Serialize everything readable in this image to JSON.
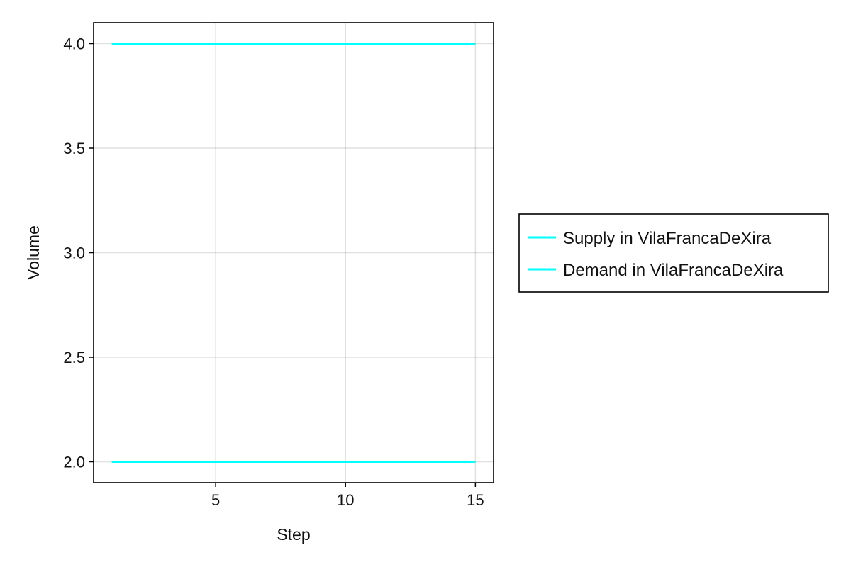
{
  "chart_data": {
    "type": "line",
    "xlabel": "Step",
    "ylabel": "Volume",
    "xlim": [
      0.3,
      15.7
    ],
    "ylim": [
      1.9,
      4.1
    ],
    "xticks": [
      5,
      10,
      15
    ],
    "xtick_labels": [
      "5",
      "10",
      "15"
    ],
    "yticks": [
      2.0,
      2.5,
      3.0,
      3.5,
      4.0
    ],
    "ytick_labels": [
      "2.0",
      "2.5",
      "3.0",
      "3.5",
      "4.0"
    ],
    "grid": true,
    "legend_position": "right",
    "series": [
      {
        "name": "Supply in VilaFrancaDeXira",
        "color": "#00ffff",
        "x": [
          1,
          2,
          3,
          4,
          5,
          6,
          7,
          8,
          9,
          10,
          11,
          12,
          13,
          14,
          15
        ],
        "y": [
          4,
          4,
          4,
          4,
          4,
          4,
          4,
          4,
          4,
          4,
          4,
          4,
          4,
          4,
          4
        ]
      },
      {
        "name": "Demand in VilaFrancaDeXira",
        "color": "#00ffff",
        "x": [
          1,
          2,
          3,
          4,
          5,
          6,
          7,
          8,
          9,
          10,
          11,
          12,
          13,
          14,
          15
        ],
        "y": [
          2,
          2,
          2,
          2,
          2,
          2,
          2,
          2,
          2,
          2,
          2,
          2,
          2,
          2,
          2
        ]
      }
    ]
  }
}
